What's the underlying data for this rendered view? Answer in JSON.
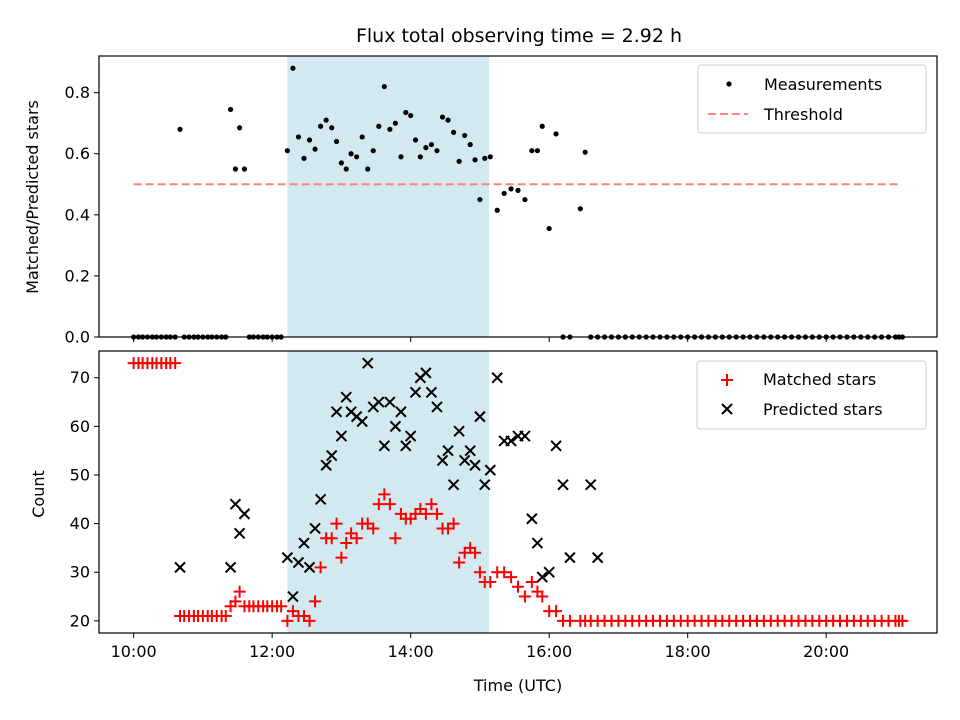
{
  "chart_data": [
    {
      "type": "scatter",
      "title": "Flux total observing time = 2.92 h",
      "xlabel": "",
      "ylabel": "Matched/Predicted stars",
      "xlim": [
        9.5,
        21.6
      ],
      "ylim": [
        0,
        0.92
      ],
      "yticks": [
        0.0,
        0.2,
        0.4,
        0.6,
        0.8
      ],
      "ytick_labels": [
        "0.0",
        "0.2",
        "0.4",
        "0.6",
        "0.8"
      ],
      "xticks": [
        10,
        12,
        14,
        16,
        18,
        20
      ],
      "highlight_span": {
        "x0": 12.22,
        "x1": 15.13,
        "color": "#d2e9f0"
      },
      "legend_placement": "upper right",
      "series": [
        {
          "name": "Measurements",
          "marker": "dot",
          "color": "#000000",
          "x": [
            10.0,
            10.07,
            10.13,
            10.2,
            10.27,
            10.33,
            10.4,
            10.47,
            10.53,
            10.6,
            10.67,
            10.73,
            10.8,
            10.87,
            10.93,
            11.0,
            11.07,
            11.13,
            11.2,
            11.27,
            11.33,
            11.4,
            11.47,
            11.53,
            11.6,
            11.67,
            11.73,
            11.8,
            11.87,
            11.93,
            12.0,
            12.07,
            12.13,
            12.22,
            12.3,
            12.38,
            12.46,
            12.54,
            12.62,
            12.7,
            12.78,
            12.86,
            12.93,
            13.0,
            13.07,
            13.14,
            13.22,
            13.3,
            13.38,
            13.46,
            13.54,
            13.62,
            13.7,
            13.78,
            13.86,
            13.93,
            14.0,
            14.07,
            14.14,
            14.22,
            14.3,
            14.38,
            14.46,
            14.54,
            14.62,
            14.7,
            14.78,
            14.86,
            14.93,
            15.0,
            15.07,
            15.15,
            15.25,
            15.35,
            15.45,
            15.55,
            15.65,
            15.75,
            15.83,
            15.9,
            16.0,
            16.1,
            16.2,
            16.3,
            16.45,
            16.52,
            16.6,
            16.7,
            16.8,
            16.9,
            17.0,
            17.1,
            17.2,
            17.3,
            17.4,
            17.5,
            17.6,
            17.7,
            17.8,
            17.9,
            18.0,
            18.1,
            18.2,
            18.3,
            18.4,
            18.5,
            18.6,
            18.7,
            18.8,
            18.9,
            19.0,
            19.1,
            19.2,
            19.3,
            19.4,
            19.5,
            19.6,
            19.7,
            19.8,
            19.9,
            20.0,
            20.1,
            20.2,
            20.3,
            20.4,
            20.5,
            20.6,
            20.7,
            20.8,
            20.9,
            21.0,
            21.05,
            21.1
          ],
          "y": [
            0,
            0,
            0,
            0,
            0,
            0,
            0,
            0,
            0,
            0,
            0.68,
            0,
            0,
            0,
            0,
            0,
            0,
            0,
            0,
            0,
            0,
            0.745,
            0.55,
            0.685,
            0.55,
            0,
            0,
            0,
            0,
            0,
            0,
            0,
            0,
            0.61,
            0.88,
            0.655,
            0.585,
            0.645,
            0.615,
            0.69,
            0.71,
            0.685,
            0.64,
            0.57,
            0.55,
            0.6,
            0.59,
            0.655,
            0.55,
            0.61,
            0.69,
            0.82,
            0.68,
            0.7,
            0.59,
            0.735,
            0.725,
            0.645,
            0.59,
            0.62,
            0.63,
            0.61,
            0.72,
            0.71,
            0.67,
            0.575,
            0.66,
            0.63,
            0.58,
            0.45,
            0.585,
            0.59,
            0.415,
            0.47,
            0.485,
            0.48,
            0.45,
            0.61,
            0.61,
            0.69,
            0.355,
            0.665,
            0,
            0,
            0.42,
            0.605,
            0,
            0,
            0,
            0,
            0,
            0,
            0,
            0,
            0,
            0,
            0,
            0,
            0,
            0,
            0,
            0,
            0,
            0,
            0,
            0,
            0,
            0,
            0,
            0,
            0,
            0,
            0,
            0,
            0,
            0,
            0,
            0,
            0,
            0,
            0,
            0,
            0,
            0,
            0,
            0,
            0,
            0,
            0,
            0,
            0,
            0,
            0
          ]
        },
        {
          "name": "Threshold",
          "marker": "dashed-line",
          "color": "#ff8080",
          "x": [
            10.0,
            21.05
          ],
          "y": [
            0.5,
            0.5
          ]
        }
      ]
    },
    {
      "type": "scatter",
      "title": "",
      "xlabel": "Time (UTC)",
      "ylabel": "Count",
      "xlim": [
        9.5,
        21.6
      ],
      "ylim": [
        17.5,
        75.5
      ],
      "yticks": [
        20,
        30,
        40,
        50,
        60,
        70
      ],
      "xticks": [
        10,
        12,
        14,
        16,
        18,
        20
      ],
      "xtick_labels": [
        "10:00",
        "12:00",
        "14:00",
        "16:00",
        "18:00",
        "20:00"
      ],
      "highlight_span": {
        "x0": 12.22,
        "x1": 15.13,
        "color": "#d2e9f0"
      },
      "legend_placement": "upper right",
      "series": [
        {
          "name": "Matched stars",
          "marker": "plus",
          "color": "#ff0000",
          "x": [
            10.0,
            10.07,
            10.13,
            10.2,
            10.27,
            10.33,
            10.4,
            10.47,
            10.53,
            10.6,
            10.67,
            10.73,
            10.8,
            10.87,
            10.93,
            11.0,
            11.07,
            11.13,
            11.2,
            11.27,
            11.33,
            11.4,
            11.47,
            11.53,
            11.6,
            11.67,
            11.73,
            11.8,
            11.87,
            11.93,
            12.0,
            12.07,
            12.13,
            12.22,
            12.3,
            12.38,
            12.46,
            12.54,
            12.62,
            12.7,
            12.78,
            12.86,
            12.93,
            13.0,
            13.07,
            13.14,
            13.22,
            13.3,
            13.38,
            13.46,
            13.54,
            13.62,
            13.7,
            13.78,
            13.86,
            13.93,
            14.0,
            14.07,
            14.14,
            14.22,
            14.3,
            14.38,
            14.46,
            14.54,
            14.62,
            14.7,
            14.78,
            14.86,
            14.93,
            15.0,
            15.07,
            15.15,
            15.25,
            15.35,
            15.45,
            15.55,
            15.65,
            15.75,
            15.83,
            15.9,
            16.0,
            16.1,
            16.2,
            16.3,
            16.45,
            16.52,
            16.6,
            16.7,
            16.8,
            16.9,
            17.0,
            17.1,
            17.2,
            17.3,
            17.4,
            17.5,
            17.6,
            17.7,
            17.8,
            17.9,
            18.0,
            18.1,
            18.2,
            18.3,
            18.4,
            18.5,
            18.6,
            18.7,
            18.8,
            18.9,
            19.0,
            19.1,
            19.2,
            19.3,
            19.4,
            19.5,
            19.6,
            19.7,
            19.8,
            19.9,
            20.0,
            20.1,
            20.2,
            20.3,
            20.4,
            20.5,
            20.6,
            20.7,
            20.8,
            20.9,
            21.0,
            21.05,
            21.1
          ],
          "y": [
            73,
            73,
            73,
            73,
            73,
            73,
            73,
            73,
            73,
            73,
            21,
            21,
            21,
            21,
            21,
            21,
            21,
            21,
            21,
            21,
            21,
            23,
            24,
            26,
            23,
            23,
            23,
            23,
            23,
            23,
            23,
            23,
            23,
            20,
            22,
            21,
            21,
            20,
            24,
            31,
            37,
            37,
            40,
            33,
            36,
            38,
            37,
            40,
            40,
            39,
            44,
            46,
            44,
            37,
            42,
            41,
            41,
            42,
            43,
            42,
            44,
            42,
            39,
            39,
            40,
            32,
            34,
            35,
            34,
            30,
            28,
            28,
            30,
            30,
            29,
            27,
            25,
            28,
            26,
            25,
            22,
            22,
            20,
            20,
            20,
            20,
            20,
            20,
            20,
            20,
            20,
            20,
            20,
            20,
            20,
            20,
            20,
            20,
            20,
            20,
            20,
            20,
            20,
            20,
            20,
            20,
            20,
            20,
            20,
            20,
            20,
            20,
            20,
            20,
            20,
            20,
            20,
            20,
            20,
            20,
            20,
            20,
            20,
            20,
            20,
            20,
            20,
            20,
            20,
            20,
            20,
            20,
            20
          ]
        },
        {
          "name": "Predicted stars",
          "marker": "x",
          "color": "#000000",
          "x": [
            10.67,
            11.4,
            11.47,
            11.53,
            11.6,
            12.22,
            12.3,
            12.38,
            12.46,
            12.54,
            12.62,
            12.7,
            12.78,
            12.86,
            12.93,
            13.0,
            13.07,
            13.14,
            13.22,
            13.3,
            13.38,
            13.46,
            13.54,
            13.62,
            13.7,
            13.78,
            13.86,
            13.93,
            14.0,
            14.07,
            14.14,
            14.22,
            14.3,
            14.38,
            14.46,
            14.54,
            14.62,
            14.7,
            14.78,
            14.86,
            14.93,
            15.0,
            15.07,
            15.15,
            15.25,
            15.35,
            15.45,
            15.55,
            15.65,
            15.75,
            15.83,
            15.9,
            16.0,
            16.1,
            16.2,
            16.3,
            16.6,
            16.7
          ],
          "y": [
            31,
            31,
            44,
            38,
            42,
            33,
            25,
            32,
            36,
            31,
            39,
            45,
            52,
            54,
            63,
            58,
            66,
            63,
            62,
            61,
            73,
            64,
            65,
            56,
            65,
            60,
            63,
            56,
            58,
            67,
            70,
            71,
            67,
            64,
            53,
            55,
            48,
            59,
            53,
            55,
            52,
            62,
            48,
            51,
            70,
            57,
            57,
            58,
            58,
            41,
            36,
            29,
            30,
            56,
            48,
            33,
            48,
            33
          ]
        }
      ]
    }
  ]
}
